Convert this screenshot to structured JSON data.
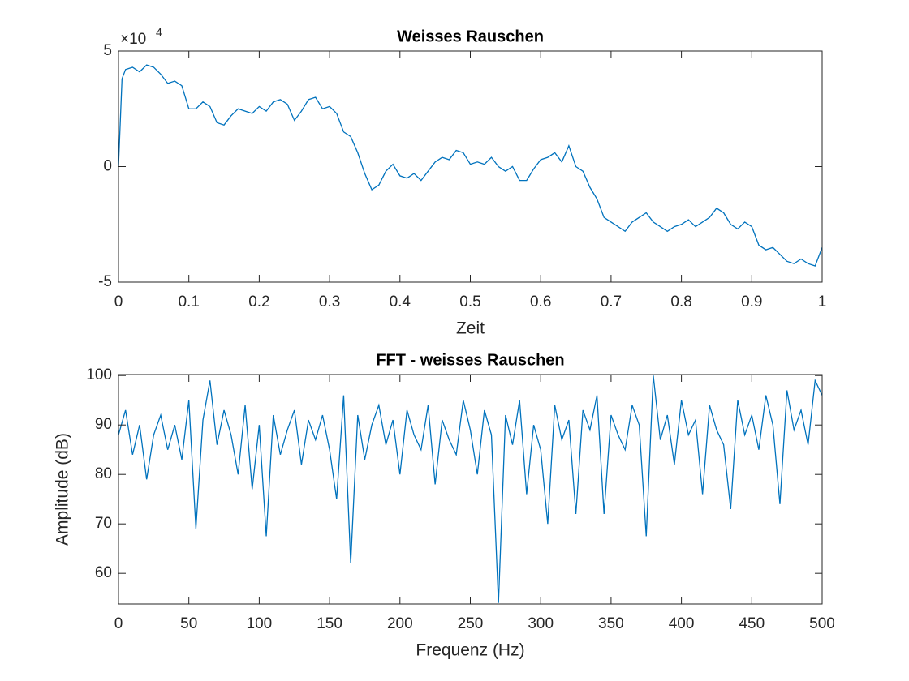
{
  "chart_data": [
    {
      "type": "line",
      "title": "Weisses Rauschen",
      "xlabel": "Zeit",
      "y_exponent": {
        "base": "×10",
        "power": "4"
      },
      "color": "#0072bd",
      "xlim": [
        0,
        1
      ],
      "ylim": [
        -50000,
        50000
      ],
      "xticks": [
        0,
        0.1,
        0.2,
        0.3,
        0.4,
        0.5,
        0.6,
        0.7,
        0.8,
        0.9,
        1
      ],
      "yticks": [
        {
          "value": -50000,
          "label": "-5"
        },
        {
          "value": 0,
          "label": "0"
        },
        {
          "value": 50000,
          "label": "5"
        }
      ],
      "x": [
        0,
        0.005,
        0.01,
        0.02,
        0.03,
        0.04,
        0.05,
        0.06,
        0.07,
        0.08,
        0.09,
        0.1,
        0.11,
        0.12,
        0.13,
        0.14,
        0.15,
        0.16,
        0.17,
        0.18,
        0.19,
        0.2,
        0.21,
        0.22,
        0.23,
        0.24,
        0.25,
        0.26,
        0.27,
        0.28,
        0.29,
        0.3,
        0.31,
        0.32,
        0.33,
        0.34,
        0.35,
        0.36,
        0.37,
        0.38,
        0.39,
        0.4,
        0.41,
        0.42,
        0.43,
        0.44,
        0.45,
        0.46,
        0.47,
        0.48,
        0.49,
        0.5,
        0.51,
        0.52,
        0.53,
        0.54,
        0.55,
        0.56,
        0.57,
        0.58,
        0.59,
        0.6,
        0.61,
        0.62,
        0.63,
        0.64,
        0.65,
        0.66,
        0.67,
        0.68,
        0.69,
        0.7,
        0.71,
        0.72,
        0.73,
        0.74,
        0.75,
        0.76,
        0.77,
        0.78,
        0.79,
        0.8,
        0.81,
        0.82,
        0.83,
        0.84,
        0.85,
        0.86,
        0.87,
        0.88,
        0.89,
        0.9,
        0.91,
        0.92,
        0.93,
        0.94,
        0.95,
        0.96,
        0.97,
        0.98,
        0.99,
        1
      ],
      "values": [
        0,
        38000,
        42000,
        43000,
        41000,
        44000,
        43000,
        40000,
        36000,
        37000,
        35000,
        25000,
        25000,
        28000,
        26000,
        19000,
        18000,
        22000,
        25000,
        24000,
        23000,
        26000,
        24000,
        28000,
        29000,
        27000,
        20000,
        24000,
        29000,
        30000,
        25000,
        26000,
        23000,
        15000,
        13000,
        6000,
        -3000,
        -10000,
        -8000,
        -2000,
        1000,
        -4000,
        -5000,
        -3000,
        -6000,
        -2000,
        2000,
        4000,
        3000,
        7000,
        6000,
        1000,
        2000,
        1000,
        4000,
        0,
        -2000,
        0,
        -6000,
        -6000,
        -1000,
        3000,
        4000,
        6000,
        2000,
        9000,
        0,
        -2000,
        -9000,
        -14000,
        -22000,
        -24000,
        -26000,
        -28000,
        -24000,
        -22000,
        -20000,
        -24000,
        -26000,
        -28000,
        -26000,
        -25000,
        -23000,
        -26000,
        -24000,
        -22000,
        -18000,
        -20000,
        -25000,
        -27000,
        -24000,
        -26000,
        -34000,
        -36000,
        -35000,
        -38000,
        -41000,
        -42000,
        -40000,
        -42000,
        -43000,
        -35000
      ]
    },
    {
      "type": "line",
      "title": "FFT - weisses Rauschen",
      "xlabel": "Frequenz (Hz)",
      "ylabel": "Amplitude (dB)",
      "color": "#0072bd",
      "xlim": [
        0,
        500
      ],
      "ylim": [
        53.8,
        100.2
      ],
      "xticks": [
        0,
        50,
        100,
        150,
        200,
        250,
        300,
        350,
        400,
        450,
        500
      ],
      "yticks": [
        60,
        70,
        80,
        90,
        100
      ],
      "x": [
        0,
        5,
        10,
        15,
        20,
        25,
        30,
        35,
        40,
        45,
        50,
        55,
        60,
        65,
        70,
        75,
        80,
        85,
        90,
        95,
        100,
        105,
        110,
        115,
        120,
        125,
        130,
        135,
        140,
        145,
        150,
        155,
        160,
        165,
        170,
        175,
        180,
        185,
        190,
        195,
        200,
        205,
        210,
        215,
        220,
        225,
        230,
        235,
        240,
        245,
        250,
        255,
        260,
        265,
        270,
        275,
        280,
        285,
        290,
        295,
        300,
        305,
        310,
        315,
        320,
        325,
        330,
        335,
        340,
        345,
        350,
        355,
        360,
        365,
        370,
        375,
        380,
        385,
        390,
        395,
        400,
        405,
        410,
        415,
        420,
        425,
        430,
        435,
        440,
        445,
        450,
        455,
        460,
        465,
        470,
        475,
        480,
        485,
        490,
        495,
        500
      ],
      "values": [
        88,
        93,
        84,
        90,
        79,
        88,
        92,
        85,
        90,
        83,
        95,
        69,
        91,
        99,
        86,
        93,
        88,
        80,
        94,
        77,
        90,
        67.5,
        92,
        84,
        89,
        93,
        82,
        91,
        87,
        92,
        85,
        75,
        96,
        62,
        92,
        83,
        90,
        94,
        86,
        91,
        80,
        93,
        88,
        85,
        94,
        78,
        91,
        87,
        84,
        95,
        89,
        80,
        93,
        88,
        54,
        92,
        86,
        95,
        76,
        90,
        85,
        70,
        94,
        87,
        91,
        72,
        93,
        89,
        96,
        72,
        92,
        88,
        85,
        94,
        90,
        67.5,
        100,
        87,
        92,
        82,
        95,
        88,
        91,
        76,
        94,
        89,
        86,
        73,
        95,
        88,
        92,
        85,
        96,
        90,
        74,
        97,
        89,
        93,
        86,
        99,
        96
      ]
    }
  ]
}
